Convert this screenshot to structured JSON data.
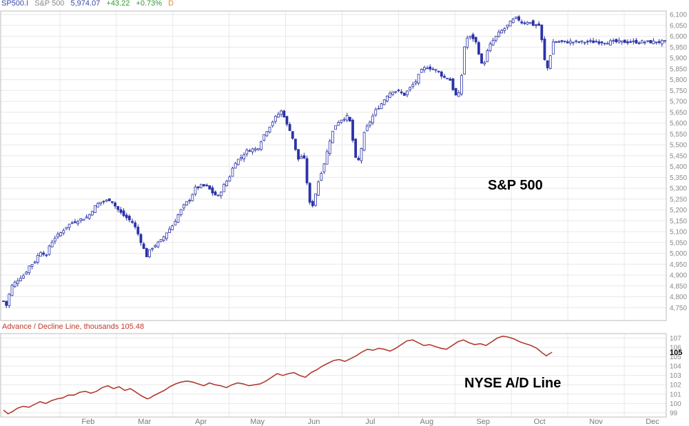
{
  "header": {
    "symbol": "SP500.I",
    "name": "S&P 500",
    "last": "5,974.07",
    "change": "+43.22",
    "pct": "+0.73%",
    "period": "D",
    "colors": {
      "symbol": "#3a45a8",
      "name": "#888888",
      "last": "#3a45a8",
      "change": "#2e9a2e",
      "period": "#e8871e"
    }
  },
  "ad_header": "Advance / Decline Line, thousands 105.48",
  "annotations": {
    "sp500": "S&P 500",
    "adline": "NYSE A/D Line"
  },
  "x_labels": [
    "Feb",
    "Mar",
    "Apr",
    "May",
    "Jun",
    "Jul",
    "Aug",
    "Sep",
    "Oct",
    "Nov",
    "Dec"
  ],
  "chart_data": [
    {
      "type": "candlestick",
      "title": "S&P 500",
      "color": "#2b32a8",
      "ylim": [
        4700,
        6110
      ],
      "y_ticks": [
        "6,100",
        "6,050",
        "6,000",
        "5,950",
        "5,900",
        "5,850",
        "5,800",
        "5,750",
        "5,700",
        "5,650",
        "5,600",
        "5,550",
        "5,500",
        "5,450",
        "5,400",
        "5,350",
        "5,300",
        "5,250",
        "5,200",
        "5,150",
        "5,100",
        "5,050",
        "5,000",
        "4,950",
        "4,900",
        "4,850",
        "4,800",
        "4,750"
      ],
      "x_range_months": [
        1.0,
        12.72
      ],
      "close_points": [
        {
          "m": 1.0,
          "v": 4780
        },
        {
          "m": 1.05,
          "v": 4760
        },
        {
          "m": 1.1,
          "v": 4810
        },
        {
          "m": 1.15,
          "v": 4850
        },
        {
          "m": 1.22,
          "v": 4870
        },
        {
          "m": 1.3,
          "v": 4890
        },
        {
          "m": 1.37,
          "v": 4900
        },
        {
          "m": 1.45,
          "v": 4940
        },
        {
          "m": 1.55,
          "v": 4960
        },
        {
          "m": 1.65,
          "v": 5010
        },
        {
          "m": 1.72,
          "v": 5000
        },
        {
          "m": 1.75,
          "v": 4970
        },
        {
          "m": 1.8,
          "v": 5030
        },
        {
          "m": 1.9,
          "v": 5070
        },
        {
          "m": 2.0,
          "v": 5090
        },
        {
          "m": 2.1,
          "v": 5120
        },
        {
          "m": 2.2,
          "v": 5140
        },
        {
          "m": 2.3,
          "v": 5150
        },
        {
          "m": 2.4,
          "v": 5160
        },
        {
          "m": 2.5,
          "v": 5170
        },
        {
          "m": 2.6,
          "v": 5210
        },
        {
          "m": 2.7,
          "v": 5235
        },
        {
          "m": 2.8,
          "v": 5240
        },
        {
          "m": 2.9,
          "v": 5250
        },
        {
          "m": 3.0,
          "v": 5210
        },
        {
          "m": 3.1,
          "v": 5180
        },
        {
          "m": 3.2,
          "v": 5160
        },
        {
          "m": 3.3,
          "v": 5140
        },
        {
          "m": 3.4,
          "v": 5080
        },
        {
          "m": 3.5,
          "v": 5010
        },
        {
          "m": 3.55,
          "v": 4980
        },
        {
          "m": 3.6,
          "v": 5020
        },
        {
          "m": 3.7,
          "v": 5040
        },
        {
          "m": 3.8,
          "v": 5060
        },
        {
          "m": 3.9,
          "v": 5100
        },
        {
          "m": 4.0,
          "v": 5130
        },
        {
          "m": 4.1,
          "v": 5180
        },
        {
          "m": 4.2,
          "v": 5220
        },
        {
          "m": 4.3,
          "v": 5250
        },
        {
          "m": 4.4,
          "v": 5300
        },
        {
          "m": 4.5,
          "v": 5310
        },
        {
          "m": 4.6,
          "v": 5310
        },
        {
          "m": 4.7,
          "v": 5280
        },
        {
          "m": 4.8,
          "v": 5260
        },
        {
          "m": 4.9,
          "v": 5310
        },
        {
          "m": 5.0,
          "v": 5350
        },
        {
          "m": 5.1,
          "v": 5420
        },
        {
          "m": 5.2,
          "v": 5440
        },
        {
          "m": 5.3,
          "v": 5470
        },
        {
          "m": 5.4,
          "v": 5480
        },
        {
          "m": 5.5,
          "v": 5480
        },
        {
          "m": 5.6,
          "v": 5540
        },
        {
          "m": 5.7,
          "v": 5580
        },
        {
          "m": 5.8,
          "v": 5620
        },
        {
          "m": 5.9,
          "v": 5650
        },
        {
          "m": 5.95,
          "v": 5660
        },
        {
          "m": 6.0,
          "v": 5600
        },
        {
          "m": 6.1,
          "v": 5560
        },
        {
          "m": 6.15,
          "v": 5500
        },
        {
          "m": 6.2,
          "v": 5450
        },
        {
          "m": 6.25,
          "v": 5420
        },
        {
          "m": 6.3,
          "v": 5470
        },
        {
          "m": 6.35,
          "v": 5400
        },
        {
          "m": 6.4,
          "v": 5270
        },
        {
          "m": 6.45,
          "v": 5200
        },
        {
          "m": 6.5,
          "v": 5240
        },
        {
          "m": 6.55,
          "v": 5300
        },
        {
          "m": 6.6,
          "v": 5350
        },
        {
          "m": 6.7,
          "v": 5430
        },
        {
          "m": 6.8,
          "v": 5540
        },
        {
          "m": 6.9,
          "v": 5600
        },
        {
          "m": 7.0,
          "v": 5620
        },
        {
          "m": 7.1,
          "v": 5630
        },
        {
          "m": 7.15,
          "v": 5600
        },
        {
          "m": 7.2,
          "v": 5500
        },
        {
          "m": 7.25,
          "v": 5420
        },
        {
          "m": 7.3,
          "v": 5430
        },
        {
          "m": 7.4,
          "v": 5560
        },
        {
          "m": 7.5,
          "v": 5610
        },
        {
          "m": 7.6,
          "v": 5660
        },
        {
          "m": 7.7,
          "v": 5690
        },
        {
          "m": 7.8,
          "v": 5730
        },
        {
          "m": 7.9,
          "v": 5750
        },
        {
          "m": 8.0,
          "v": 5745
        },
        {
          "m": 8.1,
          "v": 5730
        },
        {
          "m": 8.2,
          "v": 5760
        },
        {
          "m": 8.3,
          "v": 5790
        },
        {
          "m": 8.4,
          "v": 5840
        },
        {
          "m": 8.5,
          "v": 5860
        },
        {
          "m": 8.6,
          "v": 5850
        },
        {
          "m": 8.7,
          "v": 5840
        },
        {
          "m": 8.8,
          "v": 5810
        },
        {
          "m": 8.9,
          "v": 5810
        },
        {
          "m": 9.0,
          "v": 5730
        },
        {
          "m": 9.05,
          "v": 5720
        },
        {
          "m": 9.1,
          "v": 5760
        },
        {
          "m": 9.15,
          "v": 5930
        },
        {
          "m": 9.2,
          "v": 5990
        },
        {
          "m": 9.3,
          "v": 6000
        },
        {
          "m": 9.4,
          "v": 5960
        },
        {
          "m": 9.45,
          "v": 5880
        },
        {
          "m": 9.5,
          "v": 5860
        },
        {
          "m": 9.55,
          "v": 5910
        },
        {
          "m": 9.6,
          "v": 5950
        },
        {
          "m": 9.7,
          "v": 5990
        },
        {
          "m": 9.8,
          "v": 6020
        },
        {
          "m": 9.9,
          "v": 6040
        },
        {
          "m": 10.0,
          "v": 6070
        },
        {
          "m": 10.1,
          "v": 6085
        },
        {
          "m": 10.2,
          "v": 6060
        },
        {
          "m": 10.3,
          "v": 6070
        },
        {
          "m": 10.4,
          "v": 6050
        },
        {
          "m": 10.5,
          "v": 6050
        },
        {
          "m": 10.55,
          "v": 5960
        },
        {
          "m": 10.6,
          "v": 5870
        },
        {
          "m": 10.65,
          "v": 5850
        },
        {
          "m": 10.7,
          "v": 5930
        },
        {
          "m": 10.72,
          "v": 5974
        }
      ]
    },
    {
      "type": "line",
      "title": "NYSE A/D Line",
      "ylabel": "Advance / Decline Line, thousands",
      "color": "#b03a2e",
      "last_value": 105.48,
      "ylim": [
        98.7,
        107.4
      ],
      "y_ticks": [
        "107",
        "106",
        "105",
        "104",
        "103",
        "102",
        "101",
        "100",
        "99"
      ],
      "points": [
        {
          "m": 1.0,
          "v": 99.3
        },
        {
          "m": 1.08,
          "v": 98.9
        },
        {
          "m": 1.15,
          "v": 99.1
        },
        {
          "m": 1.25,
          "v": 99.5
        },
        {
          "m": 1.35,
          "v": 99.7
        },
        {
          "m": 1.45,
          "v": 99.6
        },
        {
          "m": 1.55,
          "v": 99.9
        },
        {
          "m": 1.65,
          "v": 100.2
        },
        {
          "m": 1.75,
          "v": 100.0
        },
        {
          "m": 1.85,
          "v": 100.3
        },
        {
          "m": 1.95,
          "v": 100.5
        },
        {
          "m": 2.05,
          "v": 100.6
        },
        {
          "m": 2.15,
          "v": 100.9
        },
        {
          "m": 2.25,
          "v": 100.9
        },
        {
          "m": 2.35,
          "v": 101.2
        },
        {
          "m": 2.45,
          "v": 101.3
        },
        {
          "m": 2.55,
          "v": 101.1
        },
        {
          "m": 2.65,
          "v": 101.3
        },
        {
          "m": 2.75,
          "v": 101.7
        },
        {
          "m": 2.85,
          "v": 101.9
        },
        {
          "m": 2.95,
          "v": 101.6
        },
        {
          "m": 3.05,
          "v": 101.8
        },
        {
          "m": 3.15,
          "v": 101.4
        },
        {
          "m": 3.25,
          "v": 101.6
        },
        {
          "m": 3.35,
          "v": 101.2
        },
        {
          "m": 3.45,
          "v": 100.8
        },
        {
          "m": 3.55,
          "v": 100.5
        },
        {
          "m": 3.6,
          "v": 100.6
        },
        {
          "m": 3.65,
          "v": 100.8
        },
        {
          "m": 3.75,
          "v": 101.1
        },
        {
          "m": 3.85,
          "v": 101.4
        },
        {
          "m": 3.95,
          "v": 101.8
        },
        {
          "m": 4.05,
          "v": 102.1
        },
        {
          "m": 4.15,
          "v": 102.3
        },
        {
          "m": 4.25,
          "v": 102.4
        },
        {
          "m": 4.35,
          "v": 102.3
        },
        {
          "m": 4.45,
          "v": 102.1
        },
        {
          "m": 4.55,
          "v": 101.9
        },
        {
          "m": 4.65,
          "v": 102.2
        },
        {
          "m": 4.75,
          "v": 102.0
        },
        {
          "m": 4.85,
          "v": 101.9
        },
        {
          "m": 4.95,
          "v": 101.7
        },
        {
          "m": 5.05,
          "v": 102.0
        },
        {
          "m": 5.15,
          "v": 102.2
        },
        {
          "m": 5.25,
          "v": 102.1
        },
        {
          "m": 5.35,
          "v": 101.9
        },
        {
          "m": 5.45,
          "v": 102.0
        },
        {
          "m": 5.55,
          "v": 102.1
        },
        {
          "m": 5.65,
          "v": 102.4
        },
        {
          "m": 5.75,
          "v": 102.8
        },
        {
          "m": 5.85,
          "v": 103.2
        },
        {
          "m": 5.95,
          "v": 103.0
        },
        {
          "m": 6.05,
          "v": 103.2
        },
        {
          "m": 6.15,
          "v": 103.3
        },
        {
          "m": 6.25,
          "v": 103.0
        },
        {
          "m": 6.35,
          "v": 102.8
        },
        {
          "m": 6.45,
          "v": 103.3
        },
        {
          "m": 6.55,
          "v": 103.6
        },
        {
          "m": 6.65,
          "v": 104.0
        },
        {
          "m": 6.75,
          "v": 104.3
        },
        {
          "m": 6.85,
          "v": 104.6
        },
        {
          "m": 6.95,
          "v": 104.7
        },
        {
          "m": 7.05,
          "v": 104.5
        },
        {
          "m": 7.15,
          "v": 104.8
        },
        {
          "m": 7.25,
          "v": 105.1
        },
        {
          "m": 7.35,
          "v": 105.5
        },
        {
          "m": 7.45,
          "v": 105.8
        },
        {
          "m": 7.55,
          "v": 105.7
        },
        {
          "m": 7.65,
          "v": 105.9
        },
        {
          "m": 7.75,
          "v": 105.8
        },
        {
          "m": 7.85,
          "v": 105.6
        },
        {
          "m": 7.95,
          "v": 105.9
        },
        {
          "m": 8.05,
          "v": 106.3
        },
        {
          "m": 8.15,
          "v": 106.7
        },
        {
          "m": 8.25,
          "v": 106.8
        },
        {
          "m": 8.35,
          "v": 106.5
        },
        {
          "m": 8.45,
          "v": 106.2
        },
        {
          "m": 8.55,
          "v": 106.3
        },
        {
          "m": 8.65,
          "v": 106.1
        },
        {
          "m": 8.75,
          "v": 105.9
        },
        {
          "m": 8.85,
          "v": 105.8
        },
        {
          "m": 8.95,
          "v": 106.2
        },
        {
          "m": 9.05,
          "v": 106.6
        },
        {
          "m": 9.15,
          "v": 106.8
        },
        {
          "m": 9.25,
          "v": 106.5
        },
        {
          "m": 9.35,
          "v": 106.3
        },
        {
          "m": 9.45,
          "v": 106.4
        },
        {
          "m": 9.55,
          "v": 106.2
        },
        {
          "m": 9.65,
          "v": 106.6
        },
        {
          "m": 9.75,
          "v": 107.0
        },
        {
          "m": 9.85,
          "v": 107.2
        },
        {
          "m": 9.95,
          "v": 107.1
        },
        {
          "m": 10.05,
          "v": 106.9
        },
        {
          "m": 10.15,
          "v": 106.6
        },
        {
          "m": 10.25,
          "v": 106.4
        },
        {
          "m": 10.35,
          "v": 106.2
        },
        {
          "m": 10.45,
          "v": 105.9
        },
        {
          "m": 10.55,
          "v": 105.4
        },
        {
          "m": 10.62,
          "v": 105.1
        },
        {
          "m": 10.67,
          "v": 105.3
        },
        {
          "m": 10.72,
          "v": 105.48
        }
      ]
    }
  ]
}
